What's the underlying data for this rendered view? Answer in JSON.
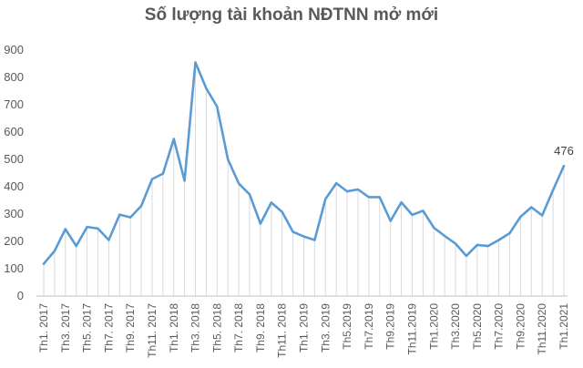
{
  "chart_data": {
    "type": "line",
    "title": "Số lượng tài khoản NĐTNN mở mới",
    "xlabel": "",
    "ylabel": "",
    "ylim": [
      0,
      900
    ],
    "yticks": [
      0,
      100,
      200,
      300,
      400,
      500,
      600,
      700,
      800,
      900
    ],
    "grid": false,
    "legend": "none",
    "line_color": "#5B9BD5",
    "categories": [
      "Th1. 2017",
      "Th2. 2017",
      "Th3. 2017",
      "Th4. 2017",
      "Th5. 2017",
      "Th6. 2017",
      "Th7. 2017",
      "Th8. 2017",
      "Th9. 2017",
      "Th10. 2017",
      "Th11. 2017",
      "Th12. 2017",
      "Th1. 2018",
      "Th2. 2018",
      "Th3. 2018",
      "Th4. 2018",
      "Th5. 2018",
      "Th6. 2018",
      "Th7. 2018",
      "Th8. 2018",
      "Th9. 2018",
      "Th10. 2018",
      "Th11. 2018",
      "Th12. 2018",
      "Th1. 2019",
      "Th2. 2019",
      "Th3. 2019",
      "Th4. 2019",
      "Th5.2019",
      "Th6.2019",
      "Th7.2019",
      "Th8.2019",
      "Th9.2019",
      "Th10.2019",
      "Th11.2019",
      "Th12.2019",
      "Th1.2020",
      "Th2.2020",
      "Th3.2020",
      "Th4.2020",
      "Th5.2020",
      "Th6.2020",
      "Th7.2020",
      "Th8.2020",
      "Th9.2020",
      "Th10.2020",
      "Th11.2020",
      "Th12.2020",
      "Th1.2021"
    ],
    "visible_tick_labels": [
      "Th1. 2017",
      "Th3. 2017",
      "Th5. 2017",
      "Th7. 2017",
      "Th9. 2017",
      "Th11. 2017",
      "Th1. 2018",
      "Th3. 2018",
      "Th5. 2018",
      "Th7. 2018",
      "Th9. 2018",
      "Th11. 2018",
      "Th1. 2019",
      "Th3. 2019",
      "Th5.2019",
      "Th7.2019",
      "Th9.2019",
      "Th11.2019",
      "Th1.2020",
      "Th3.2020",
      "Th5.2020",
      "Th7.2020",
      "Th9.2020",
      "Th11.2020",
      "Th1.2021"
    ],
    "values": [
      118,
      165,
      245,
      183,
      253,
      247,
      205,
      298,
      288,
      330,
      428,
      448,
      575,
      422,
      855,
      760,
      693,
      500,
      412,
      372,
      265,
      342,
      308,
      235,
      218,
      205,
      355,
      413,
      383,
      390,
      362,
      362,
      275,
      343,
      297,
      312,
      250,
      220,
      192,
      147,
      187,
      183,
      205,
      230,
      290,
      325,
      295,
      388,
      476
    ],
    "data_labels": [
      {
        "index": 48,
        "text": "476"
      }
    ]
  }
}
